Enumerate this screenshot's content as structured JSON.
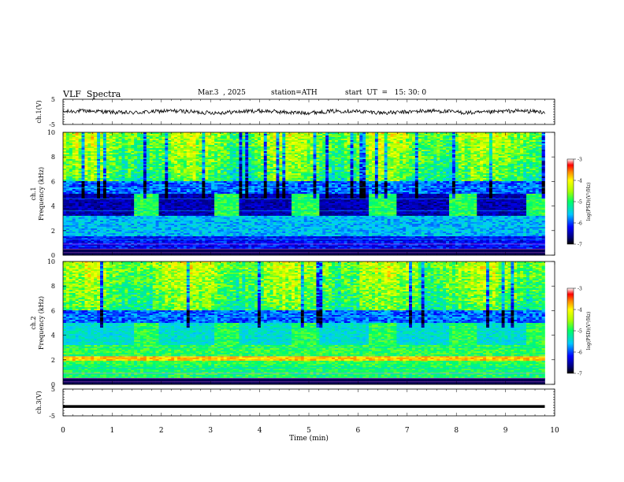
{
  "header": {
    "title": "VLF  Spectra",
    "date": "Mar.3  , 2025",
    "station": "station=ATH",
    "start": "start  UT  =   15: 30: 0"
  },
  "chart_data": [
    {
      "type": "line",
      "title": "",
      "ylabel": "ch.1(V)",
      "ylim": [
        -5,
        5
      ],
      "y_ticks": [
        "5",
        "-5"
      ],
      "xlim": [
        0,
        10
      ],
      "series": [
        {
          "x": [
            0,
            9.8
          ],
          "y": [
            0,
            0
          ]
        }
      ]
    },
    {
      "type": "heatmap",
      "ylabel": "Frequency (kHz)",
      "panel_label": "ch.1",
      "ylim": [
        0,
        10
      ],
      "y_ticks": [
        "0",
        "2",
        "4",
        "6",
        "8",
        "10"
      ],
      "xlim": [
        0,
        10
      ],
      "data_end_min": 9.8,
      "colorbar": {
        "label": "log(PSD)(V²/Hz)",
        "ticks": [
          "-3",
          "-4",
          "-5",
          "-6",
          "-7"
        ],
        "range": [
          -7,
          -3
        ]
      },
      "tone_bursts_min": [
        [
          1.45,
          1.95
        ],
        [
          3.05,
          3.6
        ],
        [
          4.65,
          5.2
        ],
        [
          6.25,
          6.8
        ],
        [
          7.85,
          8.4
        ],
        [
          9.4,
          9.8
        ]
      ]
    },
    {
      "type": "heatmap",
      "ylabel": "Frequency (kHz)",
      "panel_label": "ch.2",
      "ylim": [
        0,
        10
      ],
      "y_ticks": [
        "0",
        "2",
        "4",
        "6",
        "8",
        "10"
      ],
      "xlim": [
        0,
        10
      ],
      "data_end_min": 9.8,
      "colorbar": {
        "label": "log(PSD)(V²/Hz)",
        "ticks": [
          "-3",
          "-4",
          "-5",
          "-6",
          "-7"
        ],
        "range": [
          -7,
          -3
        ]
      },
      "tone_bursts_min": [
        [
          1.45,
          1.95
        ],
        [
          3.05,
          3.6
        ],
        [
          4.65,
          5.2
        ],
        [
          6.25,
          6.8
        ],
        [
          7.85,
          8.4
        ],
        [
          9.4,
          9.8
        ]
      ]
    },
    {
      "type": "line",
      "ylabel": "ch.3(V)",
      "ylim": [
        -5,
        5
      ],
      "y_ticks": [
        "5",
        "-5"
      ],
      "xlim": [
        0,
        10
      ],
      "series": [
        {
          "x": [
            0,
            9.8
          ],
          "y": [
            -1.5,
            -1.5
          ]
        }
      ]
    }
  ],
  "x_axis": {
    "label": "Time  (min)",
    "ticks": [
      "0",
      "1",
      "2",
      "3",
      "4",
      "5",
      "6",
      "7",
      "8",
      "9",
      "10"
    ]
  }
}
